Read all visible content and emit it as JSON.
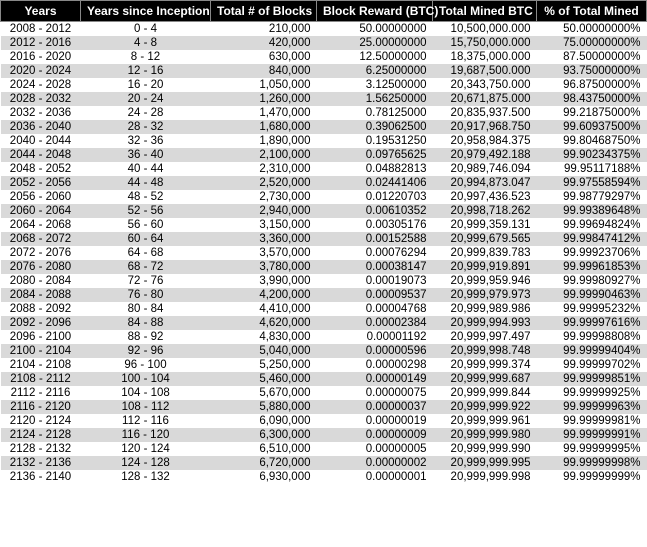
{
  "table": {
    "headers": [
      "Years",
      "Years since Inception",
      "Total # of Blocks",
      "Block Reward (BTC)",
      "Total Mined BTC",
      "% of Total Mined"
    ],
    "col_widths": [
      "80px",
      "130px",
      "106px",
      "116px",
      "104px",
      "110px"
    ],
    "header_bg": "#000000",
    "header_color": "#ffffff",
    "row_bg_odd": "#ffffff",
    "row_bg_even": "#d9d9d9",
    "rows": [
      [
        "2008 - 2012",
        "0 - 4",
        "210,000",
        "50.00000000",
        "10,500,000.000",
        "50.00000000%"
      ],
      [
        "2012 - 2016",
        "4 - 8",
        "420,000",
        "25.00000000",
        "15,750,000.000",
        "75.00000000%"
      ],
      [
        "2016 - 2020",
        "8 - 12",
        "630,000",
        "12.50000000",
        "18,375,000.000",
        "87.50000000%"
      ],
      [
        "2020 - 2024",
        "12 - 16",
        "840,000",
        "6.25000000",
        "19,687,500.000",
        "93.75000000%"
      ],
      [
        "2024 - 2028",
        "16 - 20",
        "1,050,000",
        "3.12500000",
        "20,343,750.000",
        "96.87500000%"
      ],
      [
        "2028 - 2032",
        "20 - 24",
        "1,260,000",
        "1.56250000",
        "20,671,875.000",
        "98.43750000%"
      ],
      [
        "2032 - 2036",
        "24 - 28",
        "1,470,000",
        "0.78125000",
        "20,835,937.500",
        "99.21875000%"
      ],
      [
        "2036 - 2040",
        "28 - 32",
        "1,680,000",
        "0.39062500",
        "20,917,968.750",
        "99.60937500%"
      ],
      [
        "2040 - 2044",
        "32 - 36",
        "1,890,000",
        "0.19531250",
        "20,958,984.375",
        "99.80468750%"
      ],
      [
        "2044 - 2048",
        "36 - 40",
        "2,100,000",
        "0.09765625",
        "20,979,492.188",
        "99.90234375%"
      ],
      [
        "2048 - 2052",
        "40 - 44",
        "2,310,000",
        "0.04882813",
        "20,989,746.094",
        "99.95117188%"
      ],
      [
        "2052 - 2056",
        "44 - 48",
        "2,520,000",
        "0.02441406",
        "20,994,873.047",
        "99.97558594%"
      ],
      [
        "2056 - 2060",
        "48 - 52",
        "2,730,000",
        "0.01220703",
        "20,997,436.523",
        "99.98779297%"
      ],
      [
        "2060 - 2064",
        "52 - 56",
        "2,940,000",
        "0.00610352",
        "20,998,718.262",
        "99.99389648%"
      ],
      [
        "2064 - 2068",
        "56 - 60",
        "3,150,000",
        "0.00305176",
        "20,999,359.131",
        "99.99694824%"
      ],
      [
        "2068 - 2072",
        "60 - 64",
        "3,360,000",
        "0.00152588",
        "20,999,679.565",
        "99.99847412%"
      ],
      [
        "2072 - 2076",
        "64 - 68",
        "3,570,000",
        "0.00076294",
        "20,999,839.783",
        "99.99923706%"
      ],
      [
        "2076 - 2080",
        "68 - 72",
        "3,780,000",
        "0.00038147",
        "20,999,919.891",
        "99.99961853%"
      ],
      [
        "2080 - 2084",
        "72 - 76",
        "3,990,000",
        "0.00019073",
        "20,999,959.946",
        "99.99980927%"
      ],
      [
        "2084 - 2088",
        "76 - 80",
        "4,200,000",
        "0.00009537",
        "20,999,979.973",
        "99.99990463%"
      ],
      [
        "2088 - 2092",
        "80 - 84",
        "4,410,000",
        "0.00004768",
        "20,999,989.986",
        "99.99995232%"
      ],
      [
        "2092 - 2096",
        "84 - 88",
        "4,620,000",
        "0.00002384",
        "20,999,994.993",
        "99.99997616%"
      ],
      [
        "2096 - 2100",
        "88 - 92",
        "4,830,000",
        "0.00001192",
        "20,999,997.497",
        "99.99998808%"
      ],
      [
        "2100 - 2104",
        "92 - 96",
        "5,040,000",
        "0.00000596",
        "20,999,998.748",
        "99.99999404%"
      ],
      [
        "2104 - 2108",
        "96 - 100",
        "5,250,000",
        "0.00000298",
        "20,999,999.374",
        "99.99999702%"
      ],
      [
        "2108 - 2112",
        "100 - 104",
        "5,460,000",
        "0.00000149",
        "20,999,999.687",
        "99.99999851%"
      ],
      [
        "2112 - 2116",
        "104 - 108",
        "5,670,000",
        "0.00000075",
        "20,999,999.844",
        "99.99999925%"
      ],
      [
        "2116 - 2120",
        "108 - 112",
        "5,880,000",
        "0.00000037",
        "20,999,999.922",
        "99.99999963%"
      ],
      [
        "2120 - 2124",
        "112 - 116",
        "6,090,000",
        "0.00000019",
        "20,999,999.961",
        "99.99999981%"
      ],
      [
        "2124 - 2128",
        "116 - 120",
        "6,300,000",
        "0.00000009",
        "20,999,999.980",
        "99.99999991%"
      ],
      [
        "2128 - 2132",
        "120 - 124",
        "6,510,000",
        "0.00000005",
        "20,999,999.990",
        "99.99999995%"
      ],
      [
        "2132 - 2136",
        "124 - 128",
        "6,720,000",
        "0.00000002",
        "20,999,999.995",
        "99.99999998%"
      ],
      [
        "2136 - 2140",
        "128 - 132",
        "6,930,000",
        "0.00000001",
        "20,999,999.998",
        "99.99999999%"
      ]
    ]
  }
}
